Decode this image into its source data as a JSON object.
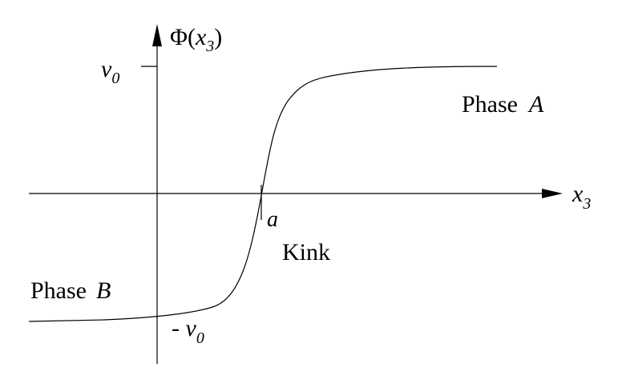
{
  "diagram": {
    "y_axis_label": {
      "symbol": "Φ",
      "open": "(",
      "var": "x",
      "sub": "3",
      "close": ")"
    },
    "x_axis_label": {
      "var": "x",
      "sub": "3"
    },
    "upper_level": {
      "var": "v",
      "sub": "0"
    },
    "lower_level": {
      "sign": "- ",
      "var": "v",
      "sub": "0"
    },
    "kink_point_label": "a",
    "kink_label": "Kink",
    "phase_a": {
      "word": "Phase",
      "letter": "A"
    },
    "phase_b": {
      "word": "Phase",
      "letter": "B"
    },
    "colors": {
      "ink": "#000000",
      "background": "#ffffff"
    }
  }
}
